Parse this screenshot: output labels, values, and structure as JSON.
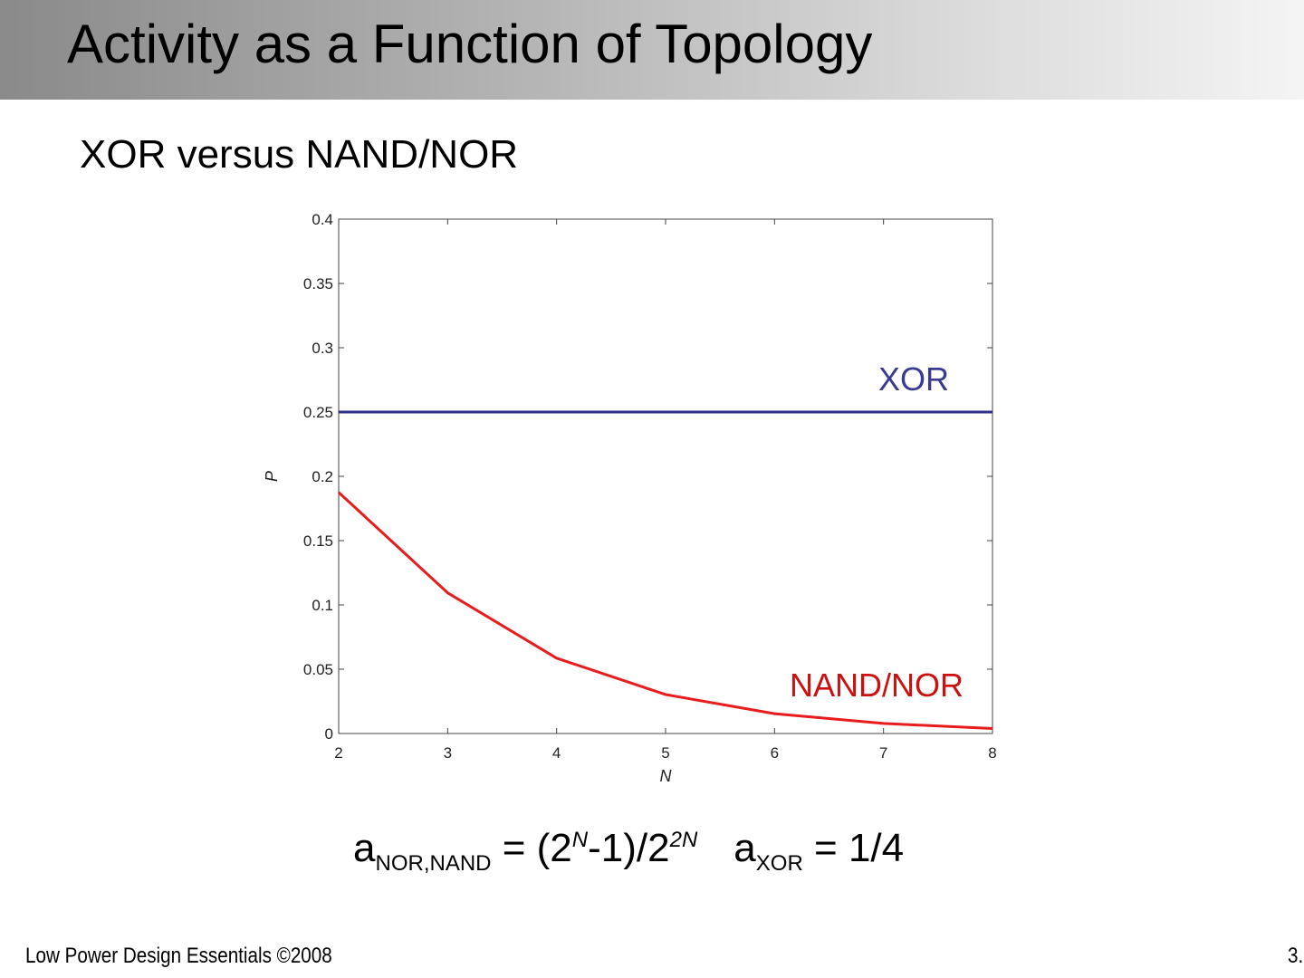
{
  "slide": {
    "title": "Activity as a Function of Topology",
    "subtitle": "XOR versus NAND/NOR",
    "formula": {
      "nor_base": "a",
      "nor_sub": "NOR,NAND",
      "nor_eq1": " = (2",
      "nor_sup1": "N",
      "nor_eq2": "-1)/2",
      "nor_sup2": "2N",
      "xor_base": "a",
      "xor_sub": "XOR",
      "xor_eq": " = 1/4"
    },
    "footer_left": "Low Power Design Essentials ©2008",
    "footer_right": "3."
  },
  "colors": {
    "xor": "#2e2e8c",
    "nand_nor": "#e81c1c",
    "nand_nor_label": "#cc1010",
    "xor_label": "#3a3a94",
    "axis": "#444444"
  },
  "chart_data": {
    "type": "line",
    "xlabel": "N",
    "ylabel": "P",
    "xlim": [
      2,
      8
    ],
    "ylim": [
      0,
      0.4
    ],
    "xticks": [
      2,
      3,
      4,
      5,
      6,
      7,
      8
    ],
    "yticks": [
      0,
      0.05,
      0.1,
      0.15,
      0.2,
      0.25,
      0.3,
      0.35,
      0.4
    ],
    "ytick_labels": [
      "0",
      "0.05",
      "0.1",
      "0.15",
      "0.2",
      "0.25",
      "0.3",
      "0.35",
      "0.4"
    ],
    "grid": false,
    "series": [
      {
        "name": "XOR",
        "color": "#2e2e8c",
        "x": [
          2,
          3,
          4,
          5,
          6,
          7,
          8
        ],
        "y": [
          0.25,
          0.25,
          0.25,
          0.25,
          0.25,
          0.25,
          0.25
        ]
      },
      {
        "name": "NAND/NOR",
        "color": "#e81c1c",
        "x": [
          2,
          3,
          4,
          5,
          6,
          7,
          8
        ],
        "y": [
          0.1875,
          0.1094,
          0.0586,
          0.0303,
          0.0154,
          0.0078,
          0.0039
        ]
      }
    ]
  }
}
